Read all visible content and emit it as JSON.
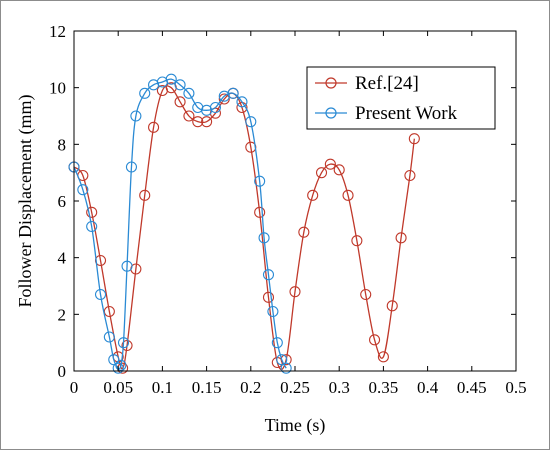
{
  "chart_data": {
    "type": "line",
    "xlabel": "Time (s)",
    "ylabel": "Follower Displacement (mm)",
    "xlim": [
      0,
      0.5
    ],
    "ylim": [
      0,
      12
    ],
    "xticks": [
      "0",
      "0.05",
      "0.1",
      "0.15",
      "0.2",
      "0.25",
      "0.3",
      "0.35",
      "0.4",
      "0.45",
      "0.5"
    ],
    "yticks": [
      "0",
      "2",
      "4",
      "6",
      "8",
      "10",
      "12"
    ],
    "grid": false,
    "legend_position": "top-right",
    "series": [
      {
        "name": "Ref.[24]",
        "color": "#c0392b",
        "marker": "circle",
        "x": [
          0,
          0.01,
          0.02,
          0.03,
          0.04,
          0.05,
          0.055,
          0.06,
          0.07,
          0.08,
          0.09,
          0.1,
          0.11,
          0.12,
          0.13,
          0.14,
          0.15,
          0.16,
          0.17,
          0.18,
          0.19,
          0.2,
          0.21,
          0.22,
          0.23,
          0.24,
          0.25,
          0.26,
          0.27,
          0.28,
          0.29,
          0.3,
          0.31,
          0.32,
          0.33,
          0.34,
          0.35,
          0.36,
          0.37,
          0.38,
          0.385
        ],
        "y": [
          7.2,
          6.9,
          5.6,
          3.9,
          2.1,
          0.5,
          0.1,
          0.9,
          3.6,
          6.2,
          8.6,
          9.9,
          10.0,
          9.5,
          9.0,
          8.8,
          8.8,
          9.1,
          9.6,
          9.8,
          9.3,
          7.9,
          5.6,
          2.6,
          0.3,
          0.4,
          2.8,
          4.9,
          6.2,
          7.0,
          7.3,
          7.1,
          6.2,
          4.6,
          2.7,
          1.1,
          0.5,
          2.3,
          4.7,
          6.9,
          8.2
        ]
      },
      {
        "name": "Present Work",
        "color": "#2a8ad4",
        "marker": "circle",
        "x": [
          0,
          0.01,
          0.02,
          0.03,
          0.04,
          0.045,
          0.05,
          0.053,
          0.056,
          0.06,
          0.065,
          0.07,
          0.08,
          0.09,
          0.1,
          0.11,
          0.12,
          0.13,
          0.14,
          0.15,
          0.16,
          0.17,
          0.18,
          0.19,
          0.2,
          0.21,
          0.215,
          0.22,
          0.225,
          0.23,
          0.235,
          0.24
        ],
        "y": [
          7.2,
          6.4,
          5.1,
          2.7,
          1.2,
          0.4,
          0.1,
          0.2,
          1.0,
          3.7,
          7.2,
          9.0,
          9.8,
          10.1,
          10.2,
          10.3,
          10.1,
          9.8,
          9.3,
          9.2,
          9.3,
          9.7,
          9.8,
          9.5,
          8.8,
          6.7,
          4.7,
          3.4,
          2.1,
          1.0,
          0.4,
          0.1
        ]
      }
    ]
  }
}
